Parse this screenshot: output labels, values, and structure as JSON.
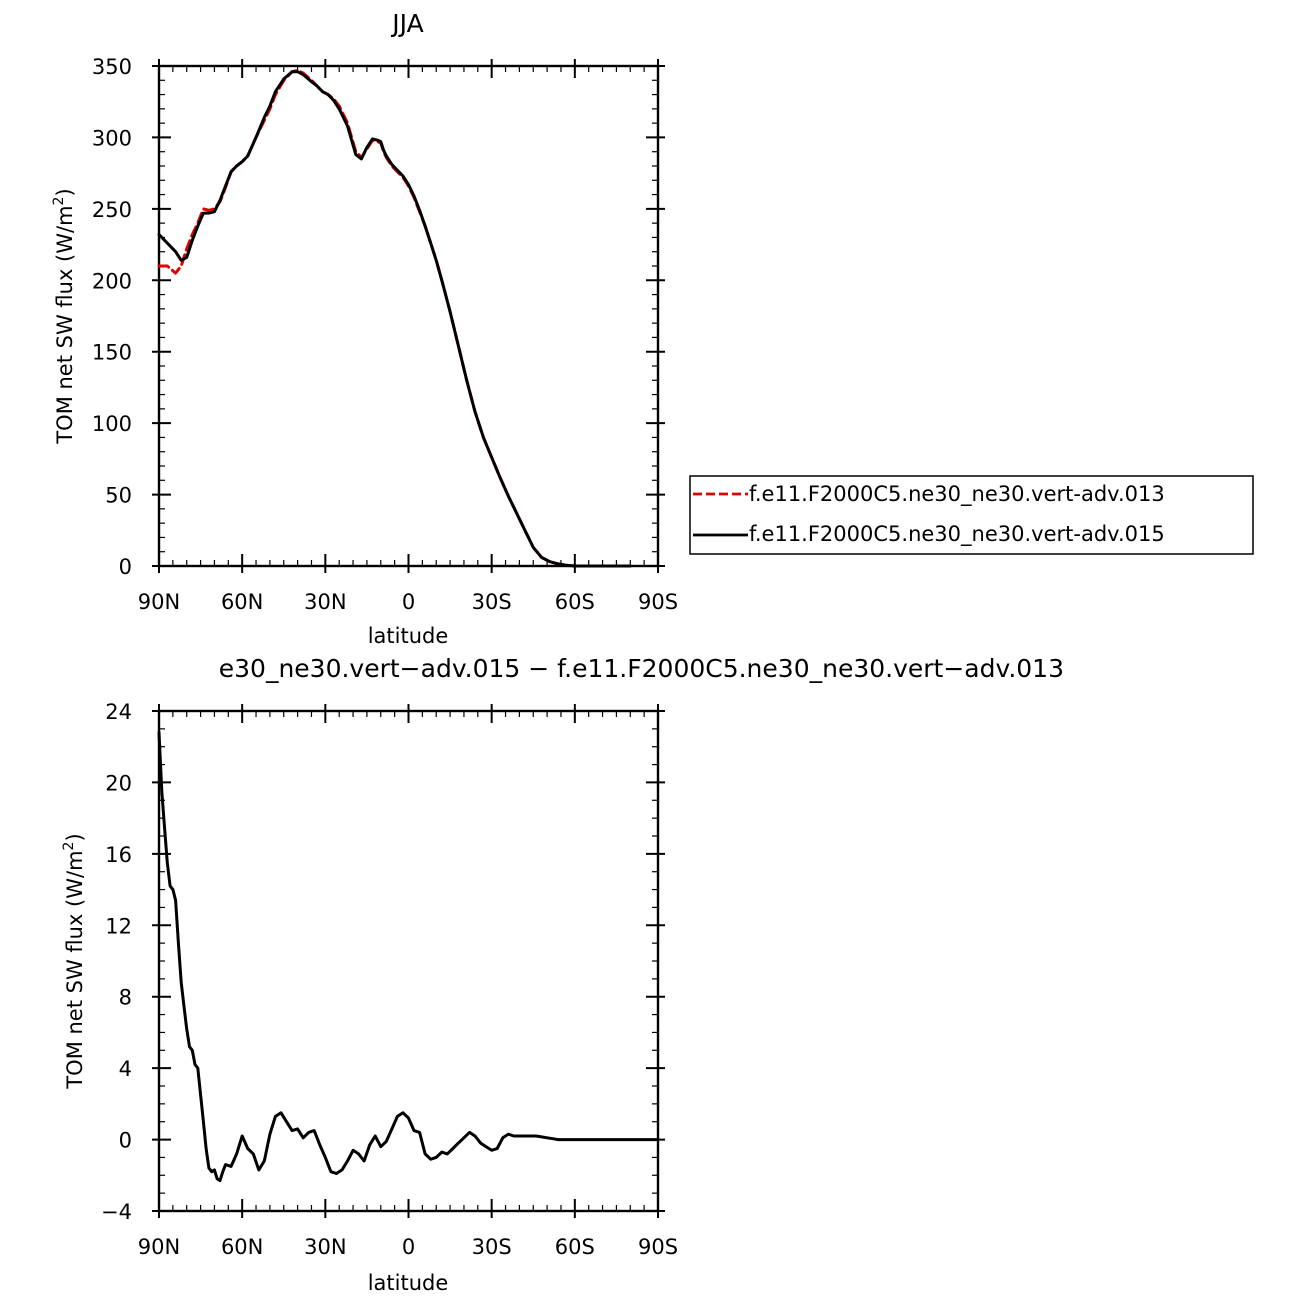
{
  "chart_data": [
    {
      "type": "line",
      "title": "JJA",
      "xlabel": "latitude",
      "ylabel_main": "TOM net SW flux (W/m",
      "ylabel_sup": "2",
      "ylabel_close": ")",
      "xlim": [
        90,
        -90
      ],
      "ylim": [
        0,
        350
      ],
      "x_ticks": [
        90,
        60,
        30,
        0,
        -30,
        -60,
        -90
      ],
      "x_tick_labels": [
        "90N",
        "60N",
        "30N",
        "0",
        "30S",
        "60S",
        "90S"
      ],
      "y_ticks": [
        0,
        50,
        100,
        150,
        200,
        250,
        300,
        350
      ],
      "y_tick_labels": [
        "0",
        "50",
        "100",
        "150",
        "200",
        "250",
        "300",
        "350"
      ],
      "legend_position": "right",
      "series": [
        {
          "name": "f.e11.F2000C5.ne30_ne30.vert-adv.013",
          "color": "#e00000",
          "dash": "dashed",
          "x": [
            90,
            87,
            84,
            82,
            80,
            78,
            76,
            74,
            72,
            70,
            68,
            66,
            64,
            62,
            60,
            58,
            55,
            52,
            50,
            48,
            45,
            42,
            40,
            38,
            35,
            33,
            31,
            29,
            27,
            25,
            22,
            19,
            17,
            15,
            13,
            11,
            10,
            9,
            8,
            6,
            4,
            2,
            0,
            -2,
            -4,
            -6,
            -8,
            -10,
            -12,
            -15,
            -18,
            -21,
            -24,
            -27,
            -30,
            -33,
            -36,
            -39,
            -42,
            -45,
            -48,
            -51,
            -54,
            -57,
            -60,
            -62,
            -64,
            -66,
            -68,
            -70,
            -72,
            -74,
            -76,
            -78,
            -80
          ],
          "y": [
            210,
            210,
            205,
            210,
            222,
            232,
            240,
            250,
            249,
            250,
            255,
            265,
            276,
            280,
            283,
            287,
            300,
            312,
            320,
            330,
            340,
            346,
            347,
            345,
            340,
            336,
            332,
            330,
            327,
            322,
            310,
            290,
            286,
            292,
            298,
            297,
            296,
            290,
            286,
            280,
            276,
            272,
            266,
            258,
            248,
            238,
            226,
            214,
            200,
            178,
            154,
            130,
            108,
            90,
            76,
            62,
            49,
            37,
            25,
            13,
            6,
            3,
            1.5,
            0.5,
            0,
            0,
            0,
            0,
            0,
            0,
            0,
            0,
            0,
            0,
            0
          ]
        },
        {
          "name": "f.e11.F2000C5.ne30_ne30.vert-adv.015",
          "color": "#000000",
          "dash": "solid",
          "x": [
            90,
            87,
            84,
            82,
            80,
            78,
            76,
            74,
            72,
            70,
            68,
            66,
            64,
            62,
            60,
            58,
            55,
            52,
            50,
            48,
            45,
            42,
            40,
            38,
            35,
            33,
            31,
            29,
            27,
            25,
            22,
            19,
            17,
            15,
            13,
            11,
            10,
            9,
            8,
            6,
            4,
            2,
            0,
            -2,
            -4,
            -6,
            -8,
            -10,
            -12,
            -15,
            -18,
            -21,
            -24,
            -27,
            -30,
            -33,
            -36,
            -39,
            -42,
            -45,
            -48,
            -51,
            -54,
            -57,
            -60,
            -62,
            -64,
            -66,
            -68,
            -70,
            -72,
            -74,
            -76,
            -78,
            -80
          ],
          "y": [
            232,
            226,
            220,
            214,
            216,
            228,
            238,
            247,
            247,
            248,
            256,
            266,
            276,
            280,
            283,
            287,
            300,
            314,
            322,
            332,
            341,
            346,
            346,
            344,
            339,
            336,
            332,
            330,
            326,
            320,
            308,
            288,
            285,
            293,
            299,
            298,
            297,
            291,
            287,
            281,
            277,
            273,
            267,
            259,
            249,
            238,
            226,
            214,
            200,
            178,
            154,
            130,
            108,
            90,
            76,
            62,
            49,
            37,
            25,
            13,
            6,
            3,
            1.5,
            0.5,
            0,
            0,
            0,
            0,
            0,
            0,
            0,
            0,
            0,
            0,
            0
          ]
        }
      ]
    },
    {
      "type": "line",
      "title": "e30_ne30.vert−adv.015 − f.e11.F2000C5.ne30_ne30.vert−adv.013",
      "xlabel": "latitude",
      "ylabel_main": "TOM net SW flux (W/m",
      "ylabel_sup": "2",
      "ylabel_close": ")",
      "xlim": [
        90,
        -90
      ],
      "ylim": [
        -4,
        24
      ],
      "x_ticks": [
        90,
        60,
        30,
        0,
        -30,
        -60,
        -90
      ],
      "x_tick_labels": [
        "90N",
        "60N",
        "30N",
        "0",
        "30S",
        "60S",
        "90S"
      ],
      "y_ticks": [
        -4,
        0,
        4,
        8,
        12,
        16,
        20,
        24
      ],
      "y_tick_labels": [
        "−4",
        "0",
        "4",
        "8",
        "12",
        "16",
        "20",
        "24"
      ],
      "series": [
        {
          "color": "#000000",
          "dash": "solid",
          "x": [
            90,
            89,
            88,
            87,
            86,
            85,
            84,
            83,
            82,
            81,
            80,
            79,
            78,
            77,
            76,
            75,
            74,
            73,
            72,
            71,
            70,
            69,
            68,
            67,
            66,
            64,
            62,
            60,
            58,
            56,
            54,
            52,
            50,
            48,
            46,
            44,
            42,
            40,
            38,
            36,
            34,
            32,
            30,
            28,
            26,
            24,
            22,
            20,
            18,
            16,
            14,
            12,
            10,
            8,
            6,
            4,
            2,
            0,
            -2,
            -4,
            -6,
            -8,
            -10,
            -12,
            -14,
            -16,
            -18,
            -20,
            -22,
            -24,
            -26,
            -28,
            -30,
            -32,
            -34,
            -36,
            -38,
            -40,
            -42,
            -44,
            -46,
            -48,
            -50,
            -52,
            -54,
            -56,
            -58,
            -60,
            -62,
            -64,
            -66,
            -68,
            -70,
            -75,
            -80,
            -90
          ],
          "y": [
            22.8,
            19.5,
            17.5,
            15.5,
            14.2,
            14.0,
            13.4,
            11.0,
            8.8,
            7.5,
            6.2,
            5.2,
            5.0,
            4.2,
            4.0,
            2.5,
            1.0,
            -0.5,
            -1.6,
            -1.8,
            -1.7,
            -2.2,
            -2.3,
            -1.8,
            -1.4,
            -1.5,
            -0.8,
            0.2,
            -0.5,
            -0.8,
            -1.7,
            -1.2,
            0.3,
            1.3,
            1.5,
            1.0,
            0.5,
            0.6,
            0.1,
            0.4,
            0.5,
            -0.3,
            -1.0,
            -1.8,
            -1.9,
            -1.7,
            -1.2,
            -0.6,
            -0.8,
            -1.2,
            -0.3,
            0.2,
            -0.4,
            -0.1,
            0.6,
            1.3,
            1.5,
            1.2,
            0.5,
            0.4,
            -0.8,
            -1.1,
            -1.0,
            -0.7,
            -0.8,
            -0.5,
            -0.2,
            0.1,
            0.4,
            0.2,
            -0.2,
            -0.4,
            -0.6,
            -0.5,
            0.1,
            0.3,
            0.2,
            0.2,
            0.2,
            0.2,
            0.2,
            0.15,
            0.1,
            0.05,
            0.0,
            0.0,
            0.0,
            0.0,
            0.0,
            0.0,
            0.0,
            0.0,
            0.0,
            0.0,
            0.0,
            0.0
          ]
        }
      ]
    }
  ]
}
